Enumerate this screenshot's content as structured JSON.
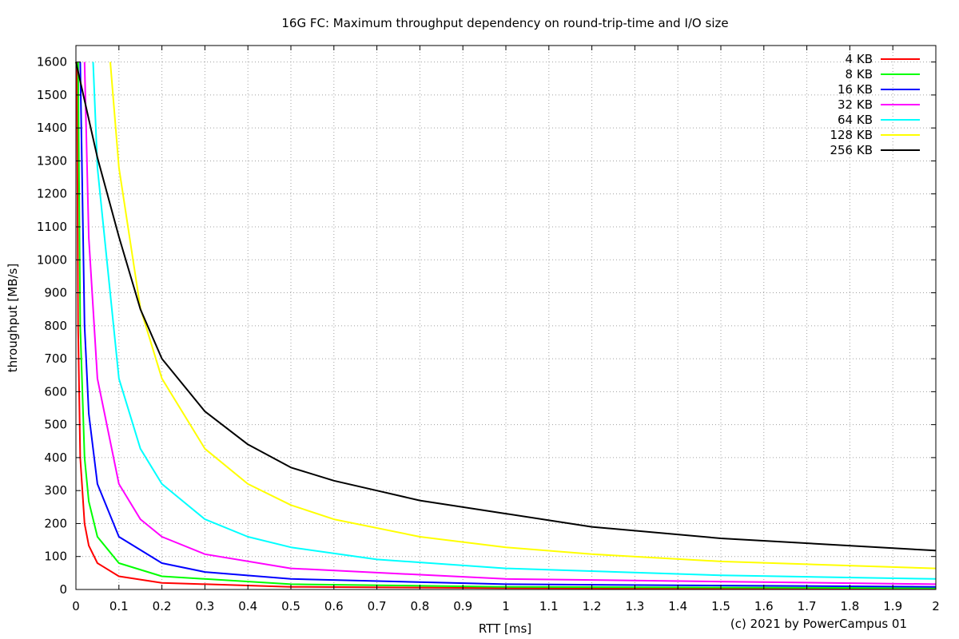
{
  "chart_data": {
    "type": "line",
    "title": "16G FC: Maximum throughput dependency on round-trip-time and I/O size",
    "xlabel": "RTT [ms]",
    "ylabel": "throughput [MB/s]",
    "xlim": [
      0,
      2
    ],
    "ylim": [
      0,
      1650
    ],
    "x_ticks": [
      "0",
      "0.1",
      "0.2",
      "0.3",
      "0.4",
      "0.5",
      "0.6",
      "0.7",
      "0.8",
      "0.9",
      "1",
      "1.1",
      "1.2",
      "1.3",
      "1.4",
      "1.5",
      "1.6",
      "1.7",
      "1.8",
      "1.9",
      "2"
    ],
    "y_ticks": [
      "0",
      "100",
      "200",
      "300",
      "400",
      "500",
      "600",
      "700",
      "800",
      "900",
      "1000",
      "1100",
      "1200",
      "1300",
      "1400",
      "1500",
      "1600"
    ],
    "grid": true,
    "legend_position": "top-right",
    "credit": "(c) 2021 by PowerCampus 01",
    "series": [
      {
        "name": "4 KB",
        "color": "#ff0000",
        "x": [
          0.0025,
          0.005,
          0.01,
          0.02,
          0.03,
          0.05,
          0.1,
          0.2,
          0.5,
          1,
          2
        ],
        "y": [
          1600,
          800,
          400,
          200,
          133,
          80,
          40,
          20,
          8,
          4,
          2
        ]
      },
      {
        "name": "8 KB",
        "color": "#00ff00",
        "x": [
          0.005,
          0.01,
          0.02,
          0.03,
          0.05,
          0.1,
          0.2,
          0.5,
          1,
          2
        ],
        "y": [
          1600,
          800,
          400,
          267,
          160,
          80,
          40,
          16,
          8,
          4
        ]
      },
      {
        "name": "16 KB",
        "color": "#0000ff",
        "x": [
          0.01,
          0.02,
          0.03,
          0.05,
          0.1,
          0.2,
          0.3,
          0.5,
          1,
          2
        ],
        "y": [
          1600,
          800,
          533,
          320,
          160,
          80,
          53,
          32,
          16,
          8
        ]
      },
      {
        "name": "32 KB",
        "color": "#ff00ff",
        "x": [
          0.02,
          0.03,
          0.05,
          0.1,
          0.15,
          0.2,
          0.3,
          0.5,
          1,
          2
        ],
        "y": [
          1600,
          1067,
          640,
          320,
          213,
          160,
          107,
          64,
          32,
          16
        ]
      },
      {
        "name": "64 KB",
        "color": "#00ffff",
        "x": [
          0.04,
          0.05,
          0.1,
          0.15,
          0.2,
          0.3,
          0.4,
          0.5,
          0.7,
          1,
          1.5,
          2
        ],
        "y": [
          1600,
          1280,
          640,
          427,
          320,
          213,
          160,
          128,
          91,
          64,
          43,
          32
        ]
      },
      {
        "name": "128 KB",
        "color": "#ffff00",
        "x": [
          0.08,
          0.1,
          0.15,
          0.2,
          0.3,
          0.4,
          0.5,
          0.6,
          0.8,
          1,
          1.2,
          1.5,
          2
        ],
        "y": [
          1600,
          1280,
          853,
          640,
          427,
          320,
          256,
          213,
          160,
          128,
          107,
          85,
          64
        ]
      },
      {
        "name": "256 KB",
        "color": "#000000",
        "x": [
          0,
          0.05,
          0.1,
          0.15,
          0.2,
          0.3,
          0.4,
          0.5,
          0.6,
          0.7,
          0.8,
          1,
          1.2,
          1.5,
          2
        ],
        "y": [
          1600,
          1310,
          1070,
          850,
          700,
          540,
          440,
          370,
          330,
          300,
          270,
          230,
          190,
          155,
          118
        ]
      }
    ]
  }
}
